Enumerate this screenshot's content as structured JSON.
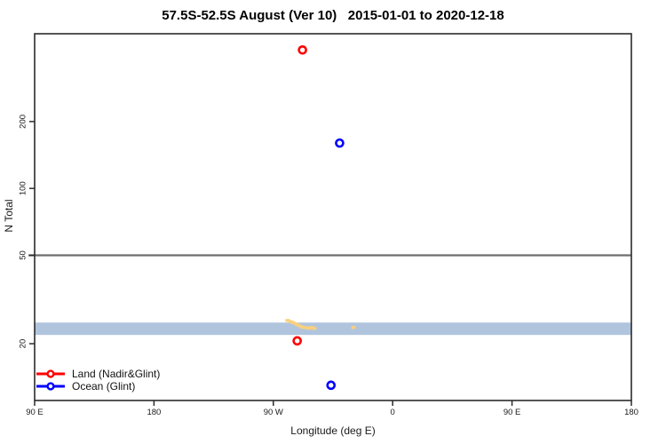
{
  "chart_data": {
    "type": "scatter",
    "title": "57.5S-52.5S August (Ver 10)   2015-01-01 to 2020-12-18",
    "xlabel": "Longitude (deg E)",
    "ylabel": "N Total",
    "y_scale": "log",
    "ylim": [
      11.1,
      497
    ],
    "yticks": [
      20,
      50,
      100,
      200
    ],
    "xlim": [
      90,
      540
    ],
    "xticks": [
      {
        "x": 90,
        "label": "90 E"
      },
      {
        "x": 180,
        "label": "180"
      },
      {
        "x": 270,
        "label": "90 W"
      },
      {
        "x": 360,
        "label": "0"
      },
      {
        "x": 450,
        "label": "90 E"
      },
      {
        "x": 540,
        "label": "180"
      }
    ],
    "grid": false,
    "legend_position": "bottom-left",
    "reference_line_y": 50,
    "reference_line_color": "#6e6e6e",
    "band": {
      "y_min": 21.9,
      "y_max": 24.9,
      "color": "#B0C4DE"
    },
    "series": [
      {
        "name": "Land (Nadir&Glint)",
        "color": "#FF0000",
        "points": [
          {
            "x": 292,
            "y": 420
          },
          {
            "x": 288,
            "y": 20.6
          }
        ]
      },
      {
        "name": "Ocean (Glint)",
        "color": "#0000FF",
        "points": [
          {
            "x": 320,
            "y": 160
          },
          {
            "x": 313.5,
            "y": 13
          }
        ]
      }
    ],
    "small_marks": {
      "color": "#FAD07E",
      "points": [
        [
          280.8,
          25.4
        ],
        [
          282.9,
          25.1
        ],
        [
          284.9,
          24.85
        ],
        [
          286.9,
          24.5
        ],
        [
          288.9,
          24.2
        ],
        [
          290.9,
          23.8
        ],
        [
          292.9,
          23.6
        ],
        [
          294.9,
          23.55
        ],
        [
          296.9,
          23.4
        ],
        [
          298.9,
          23.6
        ],
        [
          300.9,
          23.4
        ],
        [
          330.4,
          23.6
        ]
      ]
    }
  },
  "legend": {
    "items": [
      {
        "label": "Land (Nadir&Glint)",
        "color": "#FF0000"
      },
      {
        "label": "Ocean (Glint)",
        "color": "#0000FF"
      }
    ]
  }
}
